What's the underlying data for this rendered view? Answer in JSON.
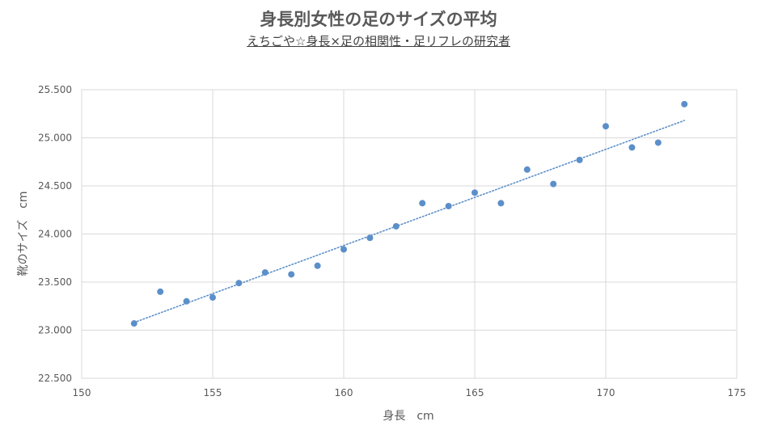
{
  "chart_data": {
    "type": "scatter",
    "title": "身長別女性の足のサイズの平均",
    "subtitle": "えちごや☆身長×足の相関性・足リフレの研究者",
    "xlabel": "身長　cm",
    "ylabel": "靴のサイズ　cm",
    "xlim": [
      150,
      175
    ],
    "ylim": [
      22.5,
      25.5
    ],
    "x_ticks": [
      "150",
      "155",
      "160",
      "165",
      "170",
      "175"
    ],
    "y_ticks": [
      "22.500",
      "23.000",
      "23.500",
      "24.000",
      "24.500",
      "25.000",
      "25.500"
    ],
    "grid": true,
    "legend": "none",
    "trendline": {
      "type": "linear",
      "style": "dotted",
      "from": [
        152,
        23.08
      ],
      "to": [
        173,
        25.18
      ]
    },
    "series": [
      {
        "color": "#5b8fc9",
        "x": [
          152,
          153,
          154,
          155,
          156,
          157,
          158,
          159,
          160,
          161,
          162,
          163,
          164,
          165,
          166,
          167,
          168,
          169,
          170,
          171,
          172,
          173
        ],
        "y": [
          23.07,
          23.4,
          23.3,
          23.34,
          23.49,
          23.6,
          23.58,
          23.67,
          23.84,
          23.96,
          24.08,
          24.32,
          24.29,
          24.43,
          24.32,
          24.67,
          24.52,
          24.77,
          25.12,
          24.9,
          24.95,
          25.35
        ]
      }
    ]
  }
}
